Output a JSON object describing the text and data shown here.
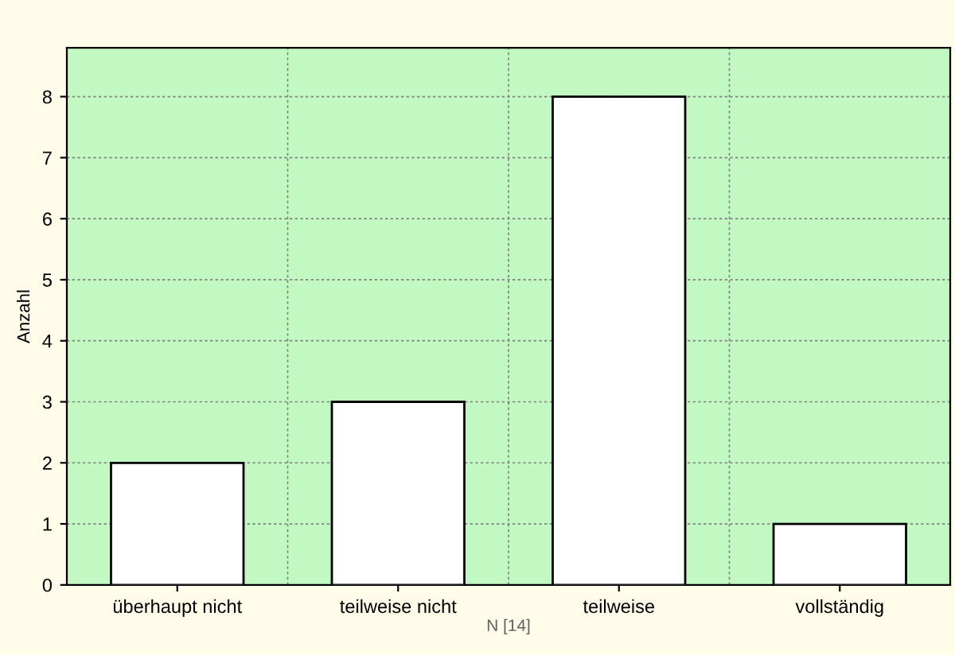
{
  "chart_data": {
    "type": "bar",
    "categories": [
      "überhaupt nicht",
      "teilweise nicht",
      "teilweise",
      "vollständig"
    ],
    "values": [
      2,
      3,
      8,
      1
    ],
    "color": "#ffffff",
    "ylabel": "Anzahl",
    "xlabel": "N [14]",
    "ylim": [
      0,
      8.8
    ],
    "yticks": [
      0,
      1,
      2,
      3,
      4,
      5,
      6,
      7,
      8
    ],
    "grid": true
  }
}
